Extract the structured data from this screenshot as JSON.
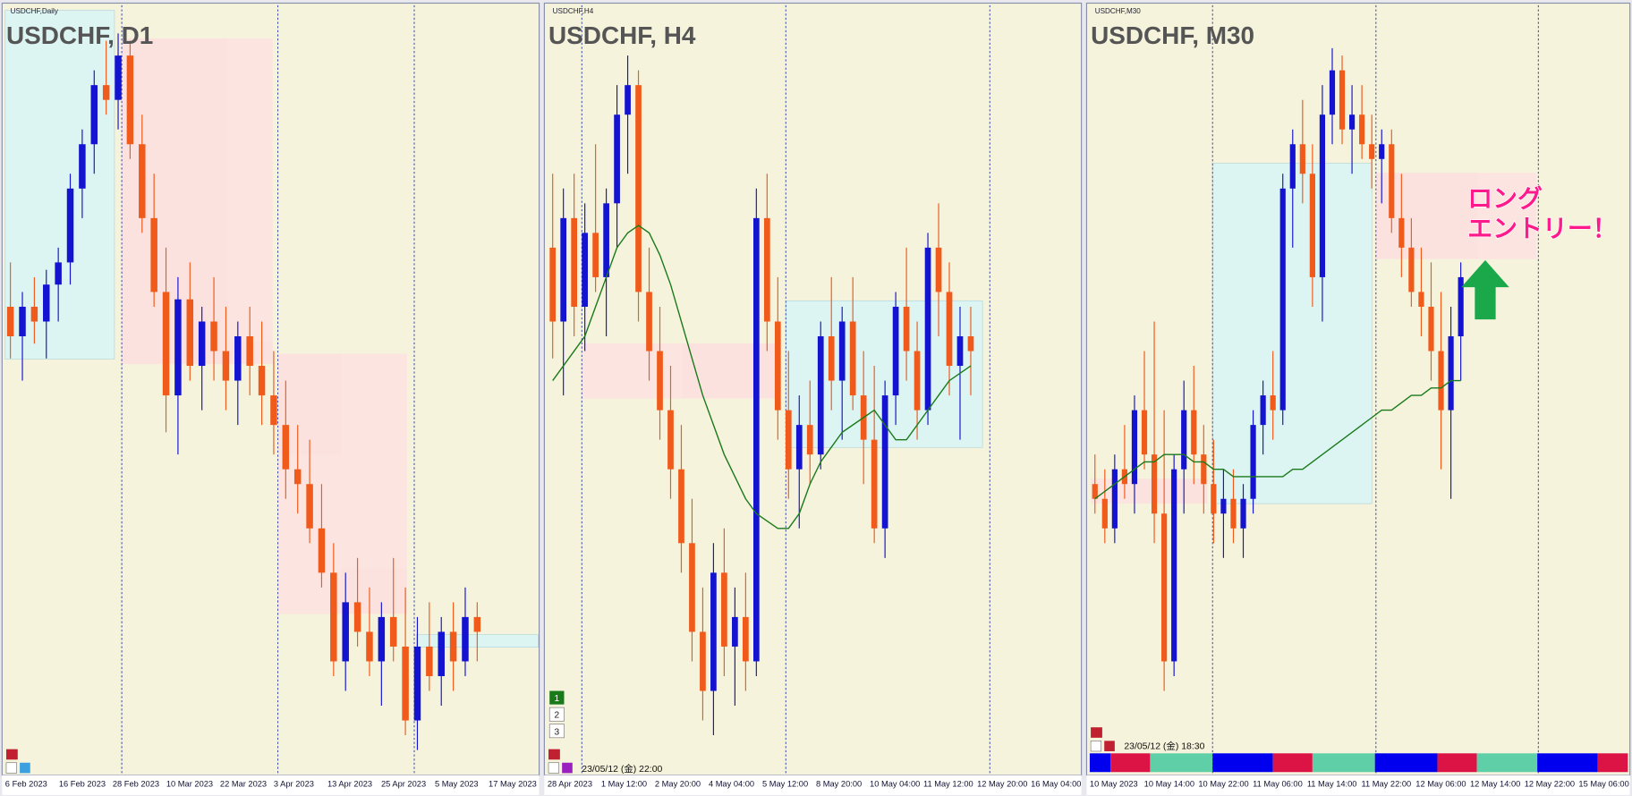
{
  "panels": [
    {
      "window_title": "USDCHF,Daily",
      "title": "USDCHF, D1",
      "dates": [
        "6 Feb 2023",
        "16 Feb 2023",
        "28 Feb 2023",
        "10 Mar 2023",
        "22 Mar 2023",
        "3 Apr 2023",
        "13 Apr 2023",
        "25 Apr 2023",
        "5 May 2023",
        "17 May 2023"
      ],
      "candles": [
        [
          62,
          68,
          55,
          58
        ],
        [
          58,
          64,
          52,
          62
        ],
        [
          62,
          66,
          57,
          60
        ],
        [
          60,
          67,
          55,
          65
        ],
        [
          65,
          70,
          60,
          68
        ],
        [
          68,
          80,
          65,
          78
        ],
        [
          78,
          86,
          74,
          84
        ],
        [
          84,
          94,
          80,
          92
        ],
        [
          92,
          98,
          88,
          90
        ],
        [
          90,
          99,
          86,
          96
        ],
        [
          96,
          98,
          82,
          84
        ],
        [
          84,
          88,
          72,
          74
        ],
        [
          74,
          80,
          62,
          64
        ],
        [
          64,
          70,
          45,
          50
        ],
        [
          50,
          66,
          42,
          63
        ],
        [
          63,
          68,
          52,
          54
        ],
        [
          54,
          62,
          48,
          60
        ],
        [
          60,
          66,
          52,
          56
        ],
        [
          56,
          62,
          48,
          52
        ],
        [
          52,
          60,
          46,
          58
        ],
        [
          58,
          62,
          50,
          54
        ],
        [
          54,
          60,
          46,
          50
        ],
        [
          50,
          56,
          42,
          46
        ],
        [
          46,
          52,
          36,
          40
        ],
        [
          40,
          46,
          34,
          38
        ],
        [
          38,
          44,
          30,
          32
        ],
        [
          32,
          38,
          24,
          26
        ],
        [
          26,
          30,
          12,
          14
        ],
        [
          14,
          26,
          10,
          22
        ],
        [
          22,
          28,
          16,
          18
        ],
        [
          18,
          24,
          12,
          14
        ],
        [
          14,
          22,
          8,
          20
        ],
        [
          20,
          28,
          14,
          16
        ],
        [
          16,
          24,
          4,
          6
        ],
        [
          6,
          20,
          2,
          16
        ],
        [
          16,
          22,
          10,
          12
        ],
        [
          12,
          20,
          8,
          18
        ],
        [
          18,
          22,
          10,
          14
        ],
        [
          14,
          24,
          12,
          20
        ],
        [
          20,
          22,
          14,
          18
        ]
      ]
    },
    {
      "window_title": "USDCHF,H4",
      "title": "USDCHF, H4",
      "dates": [
        "28 Apr 2023",
        "1 May 12:00",
        "2 May 20:00",
        "4 May 04:00",
        "5 May 12:00",
        "8 May 20:00",
        "10 May 04:00",
        "11 May 12:00",
        "12 May 20:00",
        "16 May 04:00"
      ],
      "timestamp": "23/05/12 (金) 22:00",
      "buttons": [
        "1",
        "2",
        "3"
      ],
      "candles": [
        [
          70,
          80,
          55,
          60
        ],
        [
          60,
          78,
          50,
          74
        ],
        [
          74,
          80,
          58,
          62
        ],
        [
          62,
          76,
          56,
          72
        ],
        [
          72,
          84,
          64,
          66
        ],
        [
          66,
          78,
          58,
          76
        ],
        [
          76,
          92,
          70,
          88
        ],
        [
          88,
          96,
          80,
          92
        ],
        [
          92,
          94,
          60,
          64
        ],
        [
          64,
          70,
          52,
          56
        ],
        [
          56,
          62,
          44,
          48
        ],
        [
          48,
          54,
          36,
          40
        ],
        [
          40,
          46,
          26,
          30
        ],
        [
          30,
          36,
          14,
          18
        ],
        [
          18,
          24,
          6,
          10
        ],
        [
          10,
          30,
          4,
          26
        ],
        [
          26,
          32,
          12,
          16
        ],
        [
          16,
          24,
          8,
          20
        ],
        [
          20,
          26,
          10,
          14
        ],
        [
          14,
          78,
          12,
          74
        ],
        [
          74,
          80,
          56,
          60
        ],
        [
          60,
          66,
          44,
          48
        ],
        [
          48,
          56,
          36,
          40
        ],
        [
          40,
          50,
          32,
          46
        ],
        [
          46,
          52,
          38,
          42
        ],
        [
          42,
          60,
          40,
          58
        ],
        [
          58,
          66,
          48,
          52
        ],
        [
          52,
          62,
          44,
          60
        ],
        [
          60,
          66,
          48,
          50
        ],
        [
          50,
          56,
          38,
          44
        ],
        [
          44,
          54,
          30,
          32
        ],
        [
          32,
          52,
          28,
          50
        ],
        [
          50,
          64,
          46,
          62
        ],
        [
          62,
          70,
          52,
          56
        ],
        [
          56,
          60,
          44,
          48
        ],
        [
          48,
          72,
          46,
          70
        ],
        [
          70,
          76,
          58,
          64
        ],
        [
          64,
          68,
          50,
          54
        ],
        [
          54,
          62,
          44,
          58
        ],
        [
          58,
          62,
          50,
          56
        ]
      ],
      "ma": [
        52,
        54,
        56,
        58,
        62,
        66,
        70,
        72,
        73,
        72,
        69,
        65,
        60,
        55,
        50,
        46,
        42,
        39,
        36,
        34,
        33,
        32,
        32,
        34,
        38,
        41,
        43,
        45,
        46,
        47,
        48,
        46,
        44,
        44,
        46,
        48,
        50,
        52,
        53,
        54
      ]
    },
    {
      "window_title": "USDCHF,M30",
      "title": "USDCHF, M30",
      "dates": [
        "10 May 2023",
        "10 May 14:00",
        "10 May 22:00",
        "11 May 06:00",
        "11 May 14:00",
        "11 May 22:00",
        "12 May 06:00",
        "12 May 14:00",
        "12 May 22:00",
        "15 May 06:00"
      ],
      "timestamp": "23/05/12 (金) 18:30",
      "candles": [
        [
          38,
          42,
          34,
          36
        ],
        [
          36,
          40,
          30,
          32
        ],
        [
          32,
          42,
          30,
          40
        ],
        [
          40,
          46,
          36,
          38
        ],
        [
          38,
          50,
          34,
          48
        ],
        [
          48,
          56,
          40,
          42
        ],
        [
          42,
          60,
          30,
          34
        ],
        [
          34,
          48,
          10,
          14
        ],
        [
          14,
          42,
          12,
          40
        ],
        [
          40,
          52,
          34,
          48
        ],
        [
          48,
          54,
          38,
          42
        ],
        [
          42,
          46,
          34,
          38
        ],
        [
          38,
          44,
          30,
          34
        ],
        [
          34,
          40,
          28,
          36
        ],
        [
          36,
          40,
          30,
          32
        ],
        [
          32,
          38,
          28,
          36
        ],
        [
          36,
          48,
          34,
          46
        ],
        [
          46,
          52,
          42,
          50
        ],
        [
          50,
          56,
          44,
          48
        ],
        [
          48,
          80,
          46,
          78
        ],
        [
          78,
          86,
          70,
          84
        ],
        [
          84,
          90,
          76,
          80
        ],
        [
          80,
          84,
          62,
          66
        ],
        [
          66,
          92,
          60,
          88
        ],
        [
          88,
          97,
          84,
          94
        ],
        [
          94,
          96,
          84,
          86
        ],
        [
          86,
          92,
          80,
          88
        ],
        [
          88,
          92,
          82,
          84
        ],
        [
          84,
          88,
          78,
          82
        ],
        [
          82,
          86,
          76,
          84
        ],
        [
          84,
          86,
          72,
          74
        ],
        [
          74,
          80,
          66,
          70
        ],
        [
          70,
          74,
          62,
          64
        ],
        [
          64,
          70,
          58,
          62
        ],
        [
          62,
          68,
          52,
          56
        ],
        [
          56,
          64,
          40,
          48
        ],
        [
          48,
          62,
          36,
          58
        ],
        [
          58,
          68,
          52,
          66
        ]
      ],
      "ma": [
        36,
        37,
        38,
        39,
        40,
        41,
        41,
        42,
        42,
        42,
        41,
        41,
        40,
        40,
        39,
        39,
        39,
        39,
        39,
        39,
        40,
        40,
        41,
        42,
        43,
        44,
        45,
        46,
        47,
        48,
        48,
        49,
        50,
        50,
        51,
        51,
        52,
        52
      ]
    }
  ],
  "annotation": {
    "line1": "ロング",
    "line2": "エントリー！"
  }
}
